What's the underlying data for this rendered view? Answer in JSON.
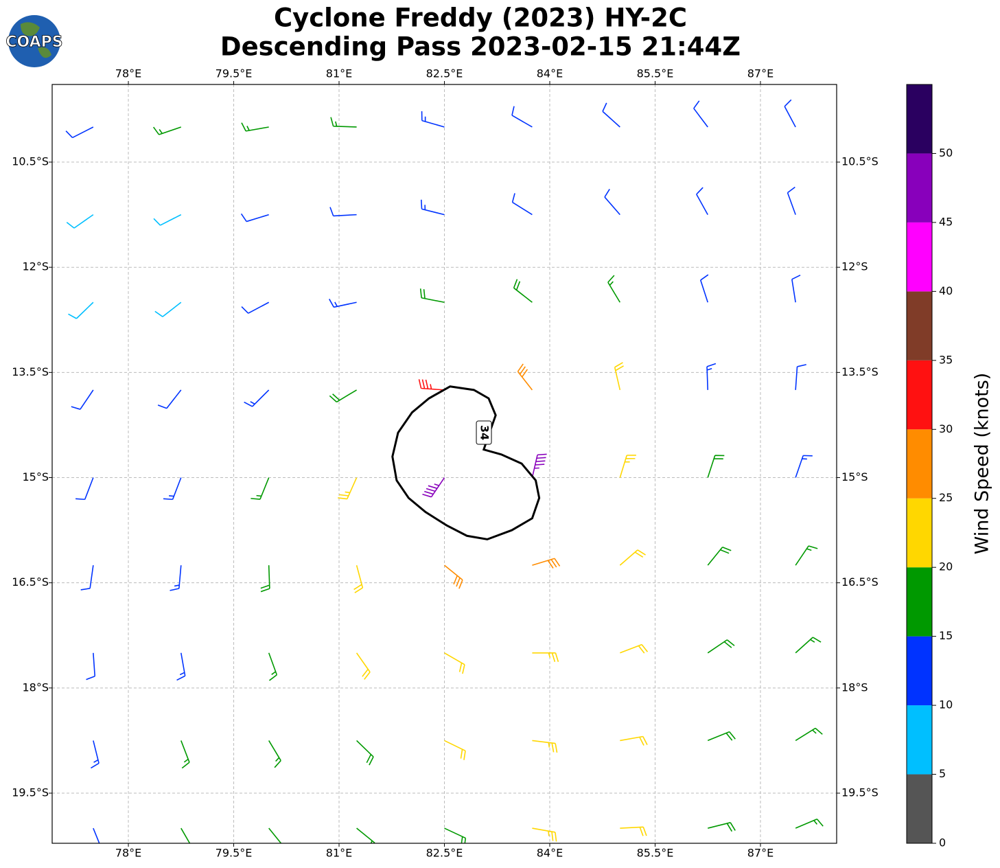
{
  "chart_data": {
    "type": "barbs",
    "title": "Cyclone Freddy (2023) HY-2C",
    "subtitle": "Descending Pass 2023-02-15 21:44Z",
    "logo_text": "COAPS",
    "xlim": [
      76.915,
      88.085
    ],
    "ylim": [
      -20.215,
      -9.393
    ],
    "xticks": [
      {
        "value": 78,
        "label": "78°E"
      },
      {
        "value": 79.5,
        "label": "79.5°E"
      },
      {
        "value": 81,
        "label": "81°E"
      },
      {
        "value": 82.5,
        "label": "82.5°E"
      },
      {
        "value": 84,
        "label": "84°E"
      },
      {
        "value": 85.5,
        "label": "85.5°E"
      },
      {
        "value": 87,
        "label": "87°E"
      }
    ],
    "yticks": [
      {
        "value": -10.5,
        "label": "10.5°S"
      },
      {
        "value": -12,
        "label": "12°S"
      },
      {
        "value": -13.5,
        "label": "13.5°S"
      },
      {
        "value": -15,
        "label": "15°S"
      },
      {
        "value": -16.5,
        "label": "16.5°S"
      },
      {
        "value": -18,
        "label": "18°S"
      },
      {
        "value": -19.5,
        "label": "19.5°S"
      }
    ],
    "grid": true,
    "barbs": {
      "lon": [
        77.5,
        78.75,
        80,
        81.25,
        82.5,
        83.75,
        85,
        86.25,
        87.5
      ],
      "lat": [
        -10,
        -11.25,
        -12.5,
        -13.75,
        -15,
        -16.25,
        -17.5,
        -18.75,
        -20
      ],
      "speed": [
        [
          12,
          17,
          17,
          16,
          14,
          12,
          12,
          11,
          11
        ],
        [
          8,
          8,
          12,
          12,
          13,
          12,
          12,
          12,
          11
        ],
        [
          8,
          8,
          12,
          14,
          18,
          18,
          15,
          12,
          12
        ],
        [
          10,
          12,
          14,
          18,
          33,
          28,
          20,
          14,
          12
        ],
        [
          12,
          13,
          17,
          24,
          45,
          45,
          24,
          18,
          14
        ],
        [
          12,
          14,
          18,
          22,
          28,
          28,
          22,
          19,
          17
        ],
        [
          12,
          14,
          17,
          21,
          22,
          23,
          22,
          18,
          17
        ],
        [
          14,
          16,
          17,
          18,
          22,
          23,
          21,
          18,
          17
        ],
        [
          13,
          17,
          17,
          18,
          19,
          23,
          21,
          18,
          17
        ]
      ],
      "direction": [
        [
          243,
          251,
          260,
          272,
          286,
          300,
          312,
          323,
          332
        ],
        [
          235,
          243,
          253,
          267,
          284,
          302,
          319,
          331,
          340
        ],
        [
          226,
          232,
          242,
          258,
          281,
          308,
          329,
          342,
          351
        ],
        [
          214,
          218,
          225,
          239,
          274,
          322,
          347,
          358,
          4
        ],
        [
          201,
          201,
          202,
          204,
          214,
          13,
          17,
          18,
          19
        ],
        [
          188,
          185,
          178,
          165,
          129,
          73,
          49,
          39,
          34
        ],
        [
          176,
          170,
          160,
          145,
          120,
          90,
          69,
          56,
          48
        ],
        [
          166,
          159,
          149,
          134,
          116,
          97,
          80,
          68,
          58
        ],
        [
          158,
          150,
          141,
          129,
          115,
          100,
          87,
          76,
          67
        ]
      ]
    },
    "contour": {
      "level": 34,
      "lon": [
        82.58,
        82.92,
        83.13,
        83.23,
        83.16,
        83.06,
        83.31,
        83.6,
        83.8,
        83.85,
        83.75,
        83.46,
        83.11,
        82.82,
        82.53,
        82.23,
        81.99,
        81.82,
        81.76,
        81.84,
        82.04,
        82.28
      ],
      "lat": [
        -13.7,
        -13.75,
        -13.87,
        -14.11,
        -14.31,
        -14.6,
        -14.67,
        -14.8,
        -15.04,
        -15.29,
        -15.58,
        -15.75,
        -15.88,
        -15.83,
        -15.68,
        -15.49,
        -15.29,
        -15.04,
        -14.7,
        -14.36,
        -14.07,
        -13.87
      ]
    },
    "colorbar": {
      "label": "Wind Speed (knots)",
      "levels": [
        0,
        5,
        10,
        15,
        20,
        25,
        30,
        35,
        40,
        45,
        50,
        55
      ],
      "colors": [
        "#555555",
        "#00bfff",
        "#0033ff",
        "#009900",
        "#ffd700",
        "#ff8c00",
        "#ff1111",
        "#803c28",
        "#ff00ff",
        "#8800bb",
        "#2a0060"
      ],
      "ticks": [
        0,
        5,
        10,
        15,
        20,
        25,
        30,
        35,
        40,
        45,
        50
      ]
    }
  }
}
